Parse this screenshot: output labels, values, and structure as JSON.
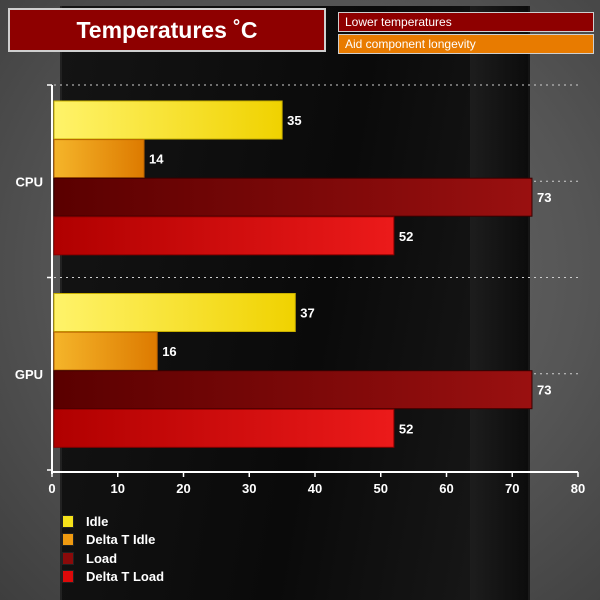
{
  "title": "Temperatures ˚C",
  "tags": [
    "Lower temperatures",
    "Aid component longevity"
  ],
  "colors": {
    "idle": "#f5e11a",
    "delta_idle": "#ef9a10",
    "load": "#8a0a0a",
    "delta_load": "#dc0a0a"
  },
  "chart_data": {
    "type": "bar",
    "orientation": "horizontal",
    "categories": [
      "CPU",
      "GPU"
    ],
    "series": [
      {
        "name": "Idle",
        "values": [
          35,
          37
        ]
      },
      {
        "name": "Delta T Idle",
        "values": [
          14,
          16
        ]
      },
      {
        "name": "Load",
        "values": [
          73,
          73
        ]
      },
      {
        "name": "Delta T Load",
        "values": [
          52,
          52
        ]
      }
    ],
    "x_ticks": [
      0,
      10,
      20,
      30,
      40,
      50,
      60,
      70,
      80
    ],
    "xlim": [
      0,
      80
    ],
    "title": "Temperatures ˚C",
    "legend_position": "bottom-left",
    "grid": "dotted category separators"
  }
}
